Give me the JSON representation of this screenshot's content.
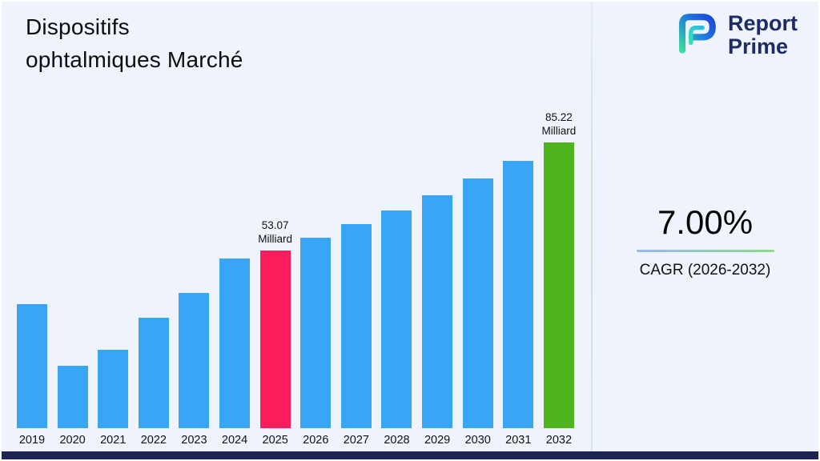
{
  "title": {
    "line1": "Dispositifs",
    "line2": "ophtalmiques Marché"
  },
  "logo": {
    "brand_line1": "Report",
    "brand_line2": "Prime"
  },
  "stats": {
    "cagr_value": "7.00%",
    "cagr_label": "CAGR (2026-2032)"
  },
  "colors": {
    "bar_default": "#3BA5F5",
    "bar_2025": "#FA1E5C",
    "bar_2032": "#4FB41E",
    "bottom_bar": "#1B2452",
    "logo_navy": "#1D2B66"
  },
  "chart_data": {
    "type": "bar",
    "title": "Dispositifs ophtalmiques Marché",
    "unit": "Milliard",
    "categories": [
      "2019",
      "2020",
      "2021",
      "2022",
      "2023",
      "2024",
      "2025",
      "2026",
      "2027",
      "2028",
      "2029",
      "2030",
      "2031",
      "2032"
    ],
    "values": [
      37.05,
      18.62,
      23.4,
      32.95,
      40.34,
      50.61,
      53.07,
      56.78,
      60.76,
      65.01,
      69.56,
      74.43,
      79.64,
      85.22
    ],
    "xlabel": "",
    "ylabel": "",
    "ylim": [
      0,
      90
    ],
    "grid": false,
    "legend": "none",
    "annotations": [
      {
        "category": "2025",
        "lines": [
          "53.07",
          "Milliard"
        ]
      },
      {
        "category": "2032",
        "lines": [
          "85.22",
          "Milliard"
        ]
      }
    ],
    "bar_colors": {
      "default": "#3BA5F5",
      "2025": "#FA1E5C",
      "2032": "#4FB41E"
    }
  }
}
